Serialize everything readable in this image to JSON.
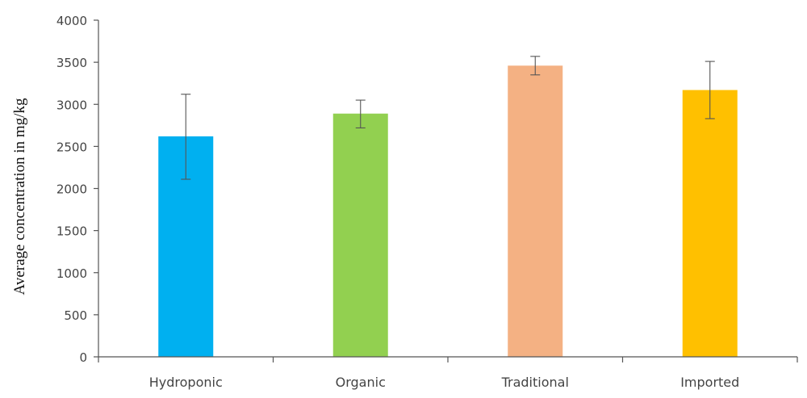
{
  "chart_data": {
    "type": "bar",
    "categories": [
      "Hydroponic",
      "Organic",
      "Traditional",
      "Imported"
    ],
    "values": [
      2620,
      2890,
      3460,
      3170
    ],
    "error_low": [
      2110,
      2720,
      3350,
      2830
    ],
    "error_high": [
      3120,
      3050,
      3570,
      3510
    ],
    "colors": [
      "#00b0f0",
      "#92d050",
      "#f4b183",
      "#ffc000"
    ],
    "ylabel": "Average concentration in mg/kg",
    "xlabel": "",
    "ylim": [
      0,
      4000
    ],
    "yticks": [
      0,
      500,
      1000,
      1500,
      2000,
      2500,
      3000,
      3500,
      4000
    ],
    "grid": false,
    "legend": "none"
  }
}
